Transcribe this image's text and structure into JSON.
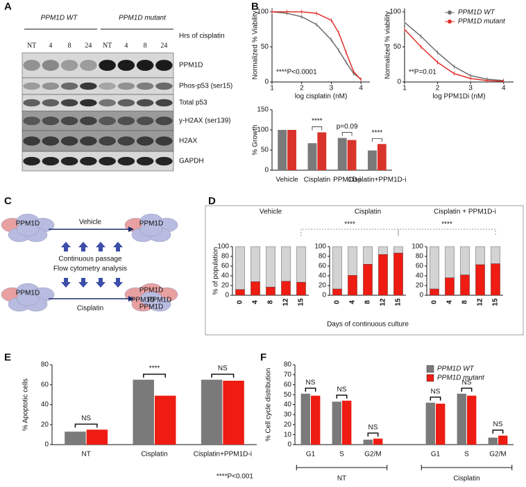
{
  "panel_labels": [
    "A",
    "B",
    "C",
    "D",
    "E",
    "F"
  ],
  "blot": {
    "groups": [
      "PPM1D WT",
      "PPM1D mutant"
    ],
    "time_label": "Hrs of cisplatin",
    "lanes": [
      "NT",
      "4",
      "8",
      "24",
      "NT",
      "4",
      "8",
      "24"
    ],
    "rows": [
      "PPM1D",
      "Phos-p53 (ser15)",
      "Total p53",
      "y-H2AX (ser139)",
      "H2AX",
      "GAPDH"
    ]
  },
  "schematic": {
    "cell_label": "PPM1D",
    "top_arrow": "Vehicle",
    "middle": [
      "Continuous passage",
      "Flow cytometry analysis"
    ],
    "bottom_arrow": "Cisplatin"
  },
  "panel_d": {
    "xlabel": "Days of continuous culture",
    "comparisons": [
      "****",
      "****"
    ]
  },
  "chart_data": [
    {
      "type": "line",
      "xlabel": "log cisplatin (nM)",
      "ylabel": "Normalized % Viability",
      "annotation": "****P<0.0001",
      "x": [
        1,
        1.5,
        2,
        2.5,
        3,
        3.25,
        3.5,
        3.75,
        4
      ],
      "xlim": [
        1,
        4.3
      ],
      "xticks": [
        1,
        2,
        3,
        4
      ],
      "ylim": [
        0,
        105
      ],
      "yticks": [
        0,
        50,
        100
      ],
      "series": [
        {
          "color": "#6b6b6b",
          "values": [
            100,
            98,
            93,
            82,
            60,
            45,
            28,
            12,
            4
          ]
        },
        {
          "color": "#e0302a",
          "values": [
            100,
            100,
            100,
            98,
            88,
            70,
            42,
            15,
            3
          ]
        }
      ]
    },
    {
      "type": "line",
      "xlabel": "log PPM1Di (nM)",
      "ylabel": "Normalized % viability",
      "annotation": "**P=0.01",
      "legend": "upper right",
      "x": [
        1,
        1.5,
        2,
        2.5,
        3,
        3.5,
        4
      ],
      "xlim": [
        1,
        4.3
      ],
      "xticks": [
        1,
        2,
        3,
        4
      ],
      "ylim": [
        0,
        105
      ],
      "yticks": [
        0,
        50,
        100
      ],
      "series": [
        {
          "name": "PPM1D WT",
          "color": "#6b6b6b",
          "values": [
            85,
            65,
            42,
            22,
            9,
            4,
            2
          ]
        },
        {
          "name": "PPM1D mutant",
          "color": "#e0302a",
          "values": [
            75,
            50,
            28,
            12,
            5,
            2,
            1
          ]
        }
      ]
    },
    {
      "type": "bar",
      "ylabel": "% Growth",
      "categories": [
        "Vehicle",
        "Cisplatin",
        "PPM1D-i",
        "Cisplatin+PPM1D-i"
      ],
      "significance": [
        null,
        "****",
        "p=0.09",
        "****"
      ],
      "ylim": [
        0,
        150
      ],
      "yticks": [
        0,
        50,
        100,
        150
      ],
      "series": [
        {
          "color": "#7a7a7a",
          "values": [
            100,
            67,
            80,
            49
          ]
        },
        {
          "color": "#d9342b",
          "values": [
            100,
            94,
            75,
            65
          ]
        }
      ]
    },
    {
      "type": "stacked_bar",
      "title": "Vehicle",
      "ylabel": "% of population",
      "categories": [
        "0",
        "4",
        "8",
        "12",
        "15"
      ],
      "ylim": [
        0,
        100
      ],
      "yticks": [
        0,
        20,
        40,
        60,
        80,
        100
      ],
      "series": [
        {
          "color": "#ee1c12",
          "values": [
            12,
            28,
            17,
            29,
            27
          ]
        },
        {
          "color": "#d3d3d3",
          "values": [
            88,
            72,
            83,
            71,
            73
          ]
        }
      ]
    },
    {
      "type": "stacked_bar",
      "title": "Cisplatin",
      "categories": [
        "0",
        "4",
        "8",
        "12",
        "15"
      ],
      "ylim": [
        0,
        100
      ],
      "yticks": [
        0,
        20,
        40,
        60,
        80,
        100
      ],
      "series": [
        {
          "color": "#ee1c12",
          "values": [
            13,
            41,
            64,
            84,
            87
          ]
        },
        {
          "color": "#d3d3d3",
          "values": [
            87,
            59,
            36,
            16,
            13
          ]
        }
      ]
    },
    {
      "type": "stacked_bar",
      "title": "Cisplatin + PPM1D-i",
      "categories": [
        "0",
        "4",
        "8",
        "12",
        "15"
      ],
      "ylim": [
        0,
        100
      ],
      "yticks": [
        0,
        20,
        40,
        60,
        80,
        100
      ],
      "series": [
        {
          "color": "#ee1c12",
          "values": [
            13,
            36,
            42,
            63,
            65
          ]
        },
        {
          "color": "#d3d3d3",
          "values": [
            87,
            64,
            58,
            37,
            35
          ]
        }
      ]
    },
    {
      "type": "bar",
      "ylabel": "% Apoptotic cells",
      "categories": [
        "NT",
        "Cisplatin",
        "Cisplatin+PPM1D-i"
      ],
      "significance": [
        "NS",
        "****",
        "NS"
      ],
      "note": "****P<0.001",
      "ylim": [
        0,
        80
      ],
      "yticks": [
        0,
        20,
        40,
        60,
        80
      ],
      "series": [
        {
          "color": "#7a7a7a",
          "values": [
            13,
            65,
            65
          ]
        },
        {
          "color": "#ee1c12",
          "values": [
            15,
            49,
            64
          ]
        }
      ]
    },
    {
      "type": "bar",
      "ylabel": "% Cell cycle distribution",
      "categories": [
        "G1",
        "S",
        "G2/M",
        "G1",
        "S",
        "G2/M"
      ],
      "groups": [
        "NT",
        "Cisplatin"
      ],
      "significance": [
        "NS",
        "NS",
        "NS",
        "NS",
        "NS",
        "NS"
      ],
      "legend": "upper right",
      "ylim": [
        0,
        80
      ],
      "yticks": [
        0,
        10,
        20,
        30,
        40,
        50,
        60,
        70,
        80
      ],
      "series": [
        {
          "name": "PPM1D WT",
          "color": "#7a7a7a",
          "values": [
            51,
            43,
            5,
            42,
            51,
            7
          ]
        },
        {
          "name": "PPM1D mutant",
          "color": "#ee1c12",
          "values": [
            49,
            44,
            6,
            41,
            49,
            9
          ]
        }
      ]
    }
  ]
}
